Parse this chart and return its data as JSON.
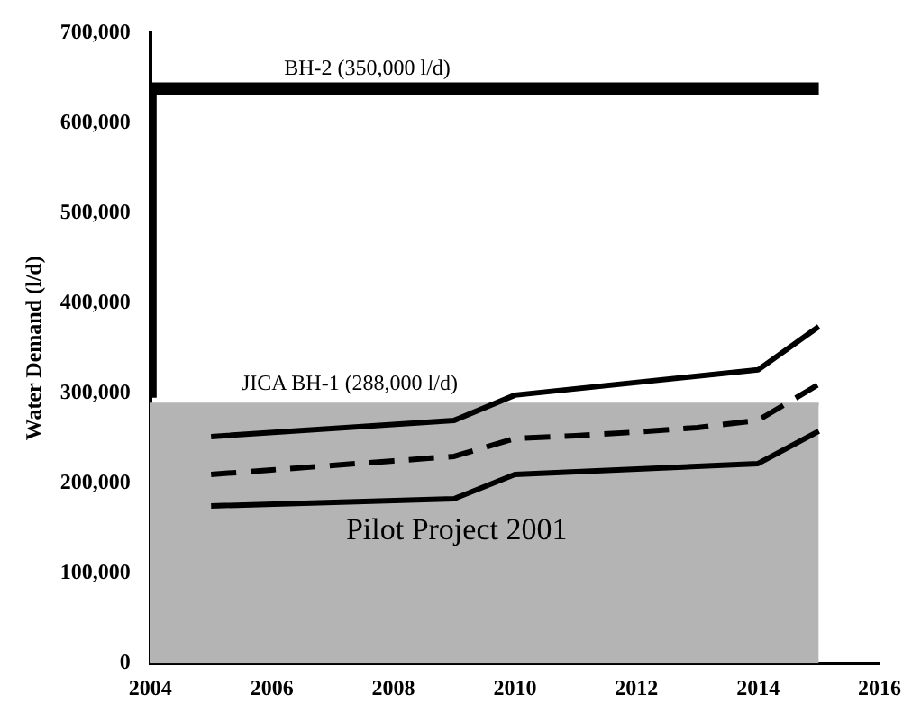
{
  "chart_data": {
    "type": "line",
    "ylabel": "Water Demand (l/d)",
    "xlim": [
      2004,
      2016
    ],
    "xticks": [
      2004,
      2006,
      2008,
      2010,
      2012,
      2014,
      2016
    ],
    "ylim": [
      0,
      700000
    ],
    "yticks": [
      {
        "value": 0,
        "label": "0"
      },
      {
        "value": 100000,
        "label": "100,000"
      },
      {
        "value": 200000,
        "label": "200,000"
      },
      {
        "value": 300000,
        "label": "300,000"
      },
      {
        "value": 400000,
        "label": "400,000"
      },
      {
        "value": 500000,
        "label": "500,000"
      },
      {
        "value": 600000,
        "label": "600,000"
      },
      {
        "value": 700000,
        "label": "700,000"
      }
    ],
    "grid": false,
    "legend": false,
    "marker": "none",
    "series": [
      {
        "type": "area",
        "color": "#b4b4b4",
        "x": [
          2004,
          2015
        ],
        "values": [
          288000,
          288000
        ]
      },
      {
        "type": "step",
        "color": "#000000",
        "x": [
          2004,
          2005,
          2015
        ],
        "values": [
          295000,
          638000,
          638000
        ]
      },
      {
        "color": "#000000",
        "x": [
          2005,
          2009,
          2010,
          2014,
          2015
        ],
        "values": [
          252000,
          270000,
          298000,
          326000,
          374000
        ]
      },
      {
        "color": "#000000",
        "line_style": "dashed",
        "x": [
          2005,
          2006,
          2007,
          2008,
          2009,
          2010,
          2011,
          2012,
          2013,
          2014,
          2015
        ],
        "values": [
          210000,
          215000,
          220000,
          225000,
          230000,
          250000,
          253000,
          257000,
          262000,
          270000,
          310000
        ]
      },
      {
        "color": "#000000",
        "x": [
          2005,
          2009,
          2010,
          2014,
          2015
        ],
        "values": [
          175000,
          183000,
          210000,
          222000,
          258000
        ]
      }
    ],
    "annotations": [
      {
        "text": "BH-2 (350,000 l/d)",
        "x": 2006.2,
        "y": 638000
      },
      {
        "text": "JICA BH-1 (288,000 l/d)",
        "x": 2005.5,
        "y": 288000
      },
      "Pilot Project 2001"
    ]
  }
}
